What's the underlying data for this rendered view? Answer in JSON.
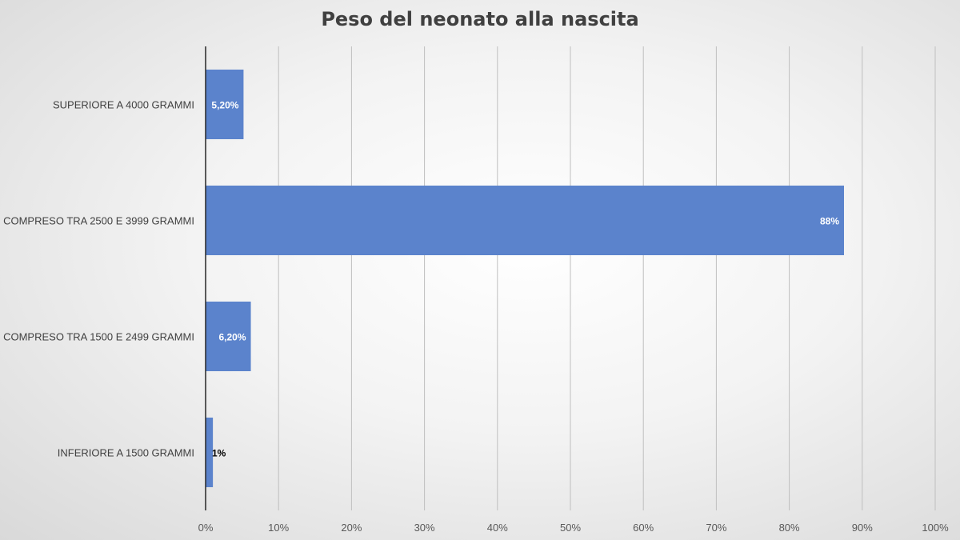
{
  "chart_data": {
    "type": "bar",
    "orientation": "horizontal",
    "title": "Peso del neonato alla nascita",
    "categories": [
      "SUPERIORE A 4000 GRAMMI",
      "COMPRESO TRA 2500 E 3999 GRAMMI",
      "COMPRESO TRA 1500 E 2499 GRAMMI",
      "INFERIORE A 1500 GRAMMI"
    ],
    "values": [
      5.2,
      87.5,
      6.2,
      1.0
    ],
    "data_labels": [
      "5,20%",
      "88%",
      "6,20%",
      "1%"
    ],
    "xlim": [
      0,
      100
    ],
    "x_ticks": [
      "0%",
      "10%",
      "20%",
      "30%",
      "40%",
      "50%",
      "60%",
      "70%",
      "80%",
      "90%",
      "100%"
    ],
    "xlabel": "",
    "ylabel": "",
    "grid": true,
    "legend": "none",
    "bar_color": "#5b83cc",
    "gridline_color": "#bfbfbf",
    "axis_color": "#262626"
  }
}
